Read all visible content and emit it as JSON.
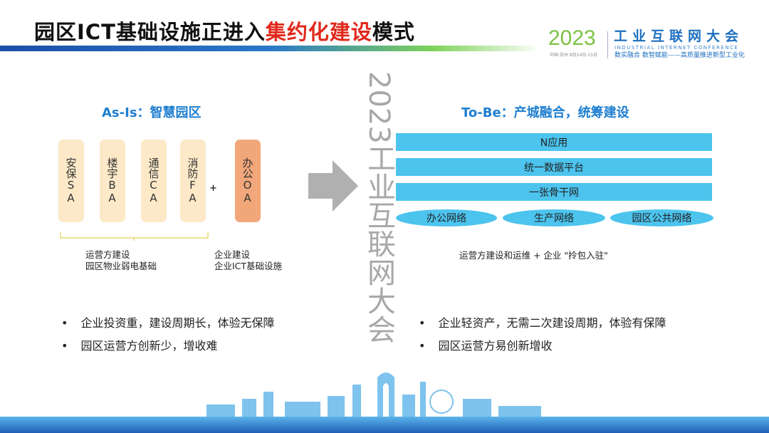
{
  "header": {
    "title_prefix": "园区ICT基础设施正进入",
    "title_highlight": "集约化建设",
    "title_suffix": "模式"
  },
  "logo": {
    "year": "2023",
    "location_date": "中国·苏州  8月14日-15日",
    "name": "工业互联网大会",
    "english": "INDUSTRIAL INTERNET CONFERENCE",
    "slogan": "数实融合  数智赋能——高质量推进新型工业化"
  },
  "as_is": {
    "heading": "As-Is：智慧园区",
    "systems": [
      "安保SA",
      "楼宇BA",
      "通信CA",
      "消防FA"
    ],
    "plus": "+",
    "office": "办公OA",
    "note_left": [
      "运营方建设",
      "园区物业弱电基础"
    ],
    "note_right": [
      "企业建设",
      "企业ICT基础设施"
    ],
    "bullets": [
      "企业投资重，建设周期长，体验无保障",
      "园区运营方创新少，增收难"
    ]
  },
  "to_be": {
    "heading": "To-Be：产城融合，统筹建设",
    "layers": [
      "N应用",
      "统一数据平台",
      "一张骨干网"
    ],
    "networks": [
      "办公网络",
      "生产网络",
      "园区公共网络"
    ],
    "note": "运营方建设和运维 + 企业 \"拎包入驻\"",
    "bullets": [
      "企业轻资产，无需二次建设周期，体验有保障",
      "园区运营方易创新增收"
    ]
  },
  "watermark": "2023工业互联网大会",
  "colors": {
    "accent": "#1f7fd0",
    "highlight": "#e0281c",
    "band": "#4cc4ee",
    "pill": "#fde9c8",
    "office": "#f2a77a",
    "arrow": "#b0b0b0"
  }
}
